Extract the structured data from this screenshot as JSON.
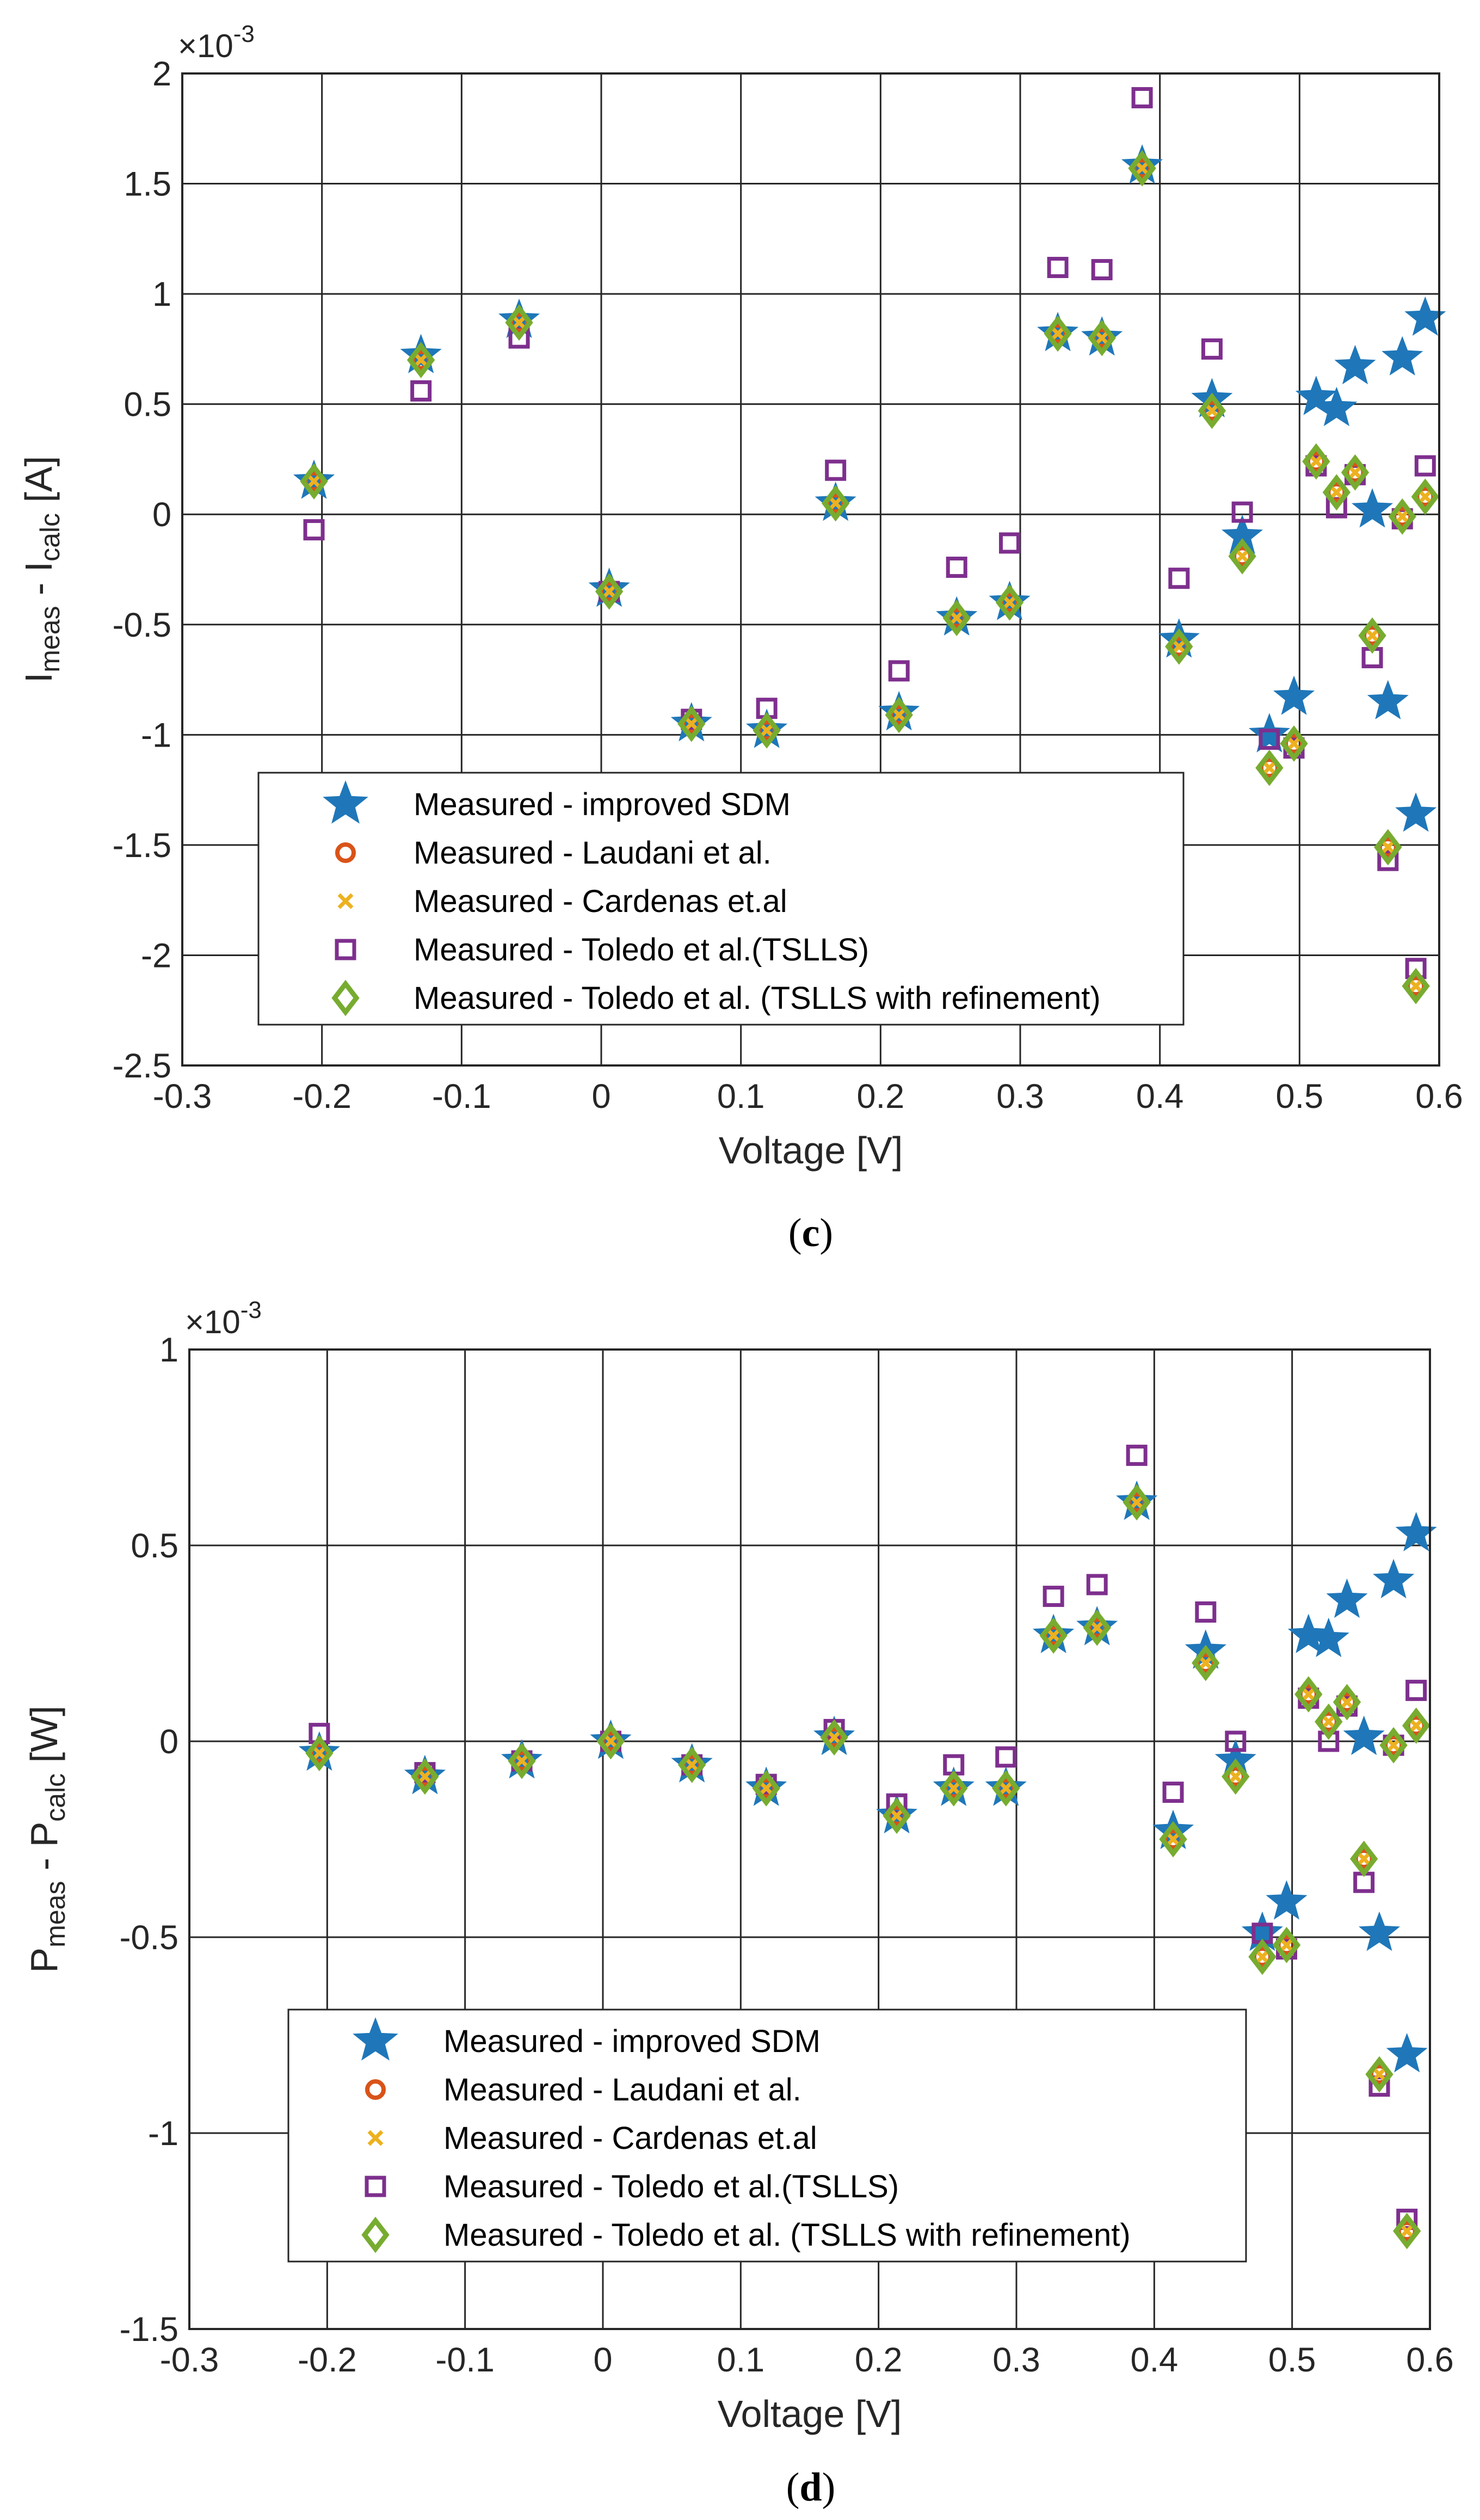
{
  "colors": {
    "improved_sdm": "#1f77b9",
    "laudani": "#d95319",
    "cardenas": "#edb120",
    "toledo_tslls": "#7e2f8e",
    "toledo_refined": "#77ac30"
  },
  "chart_data": [
    {
      "type": "scatter",
      "caption": "c",
      "xlabel": "Voltage [V]",
      "ylabel_main": "I",
      "ylabel_sub1": "meas",
      "ylabel_mid": " - I",
      "ylabel_sub2": "calc",
      "ylabel_unit": " [A]",
      "exponent_label": "×10",
      "exponent_power": "-3",
      "xlim": [
        -0.3,
        0.6
      ],
      "ylim": [
        -2.5,
        2
      ],
      "xticks": [
        -0.3,
        -0.2,
        -0.1,
        0,
        0.1,
        0.2,
        0.3,
        0.4,
        0.5,
        0.6
      ],
      "yticks": [
        -2.5,
        -2,
        -1.5,
        -1,
        -0.5,
        0,
        0.5,
        1,
        1.5,
        2
      ],
      "xtick_labels": [
        "-0.3",
        "-0.2",
        "-0.1",
        "0",
        "0.1",
        "0.2",
        "0.3",
        "0.4",
        "0.5",
        "0.6"
      ],
      "ytick_labels": [
        "-2.5",
        "-2",
        "-1.5",
        "-1",
        "-0.5",
        "0",
        "0.5",
        "1",
        "1.5",
        "2"
      ],
      "grid": true,
      "legend_position": "lower-center",
      "legend": [
        "Measured - improved SDM",
        "Measured - Laudani et al.",
        "Measured - Cardenas et.al",
        "Measured - Toledo et al.(TSLLS)",
        "Measured - Toledo et al. (TSLLS with refinement)"
      ],
      "x": [
        -0.2057,
        -0.1291,
        -0.0588,
        0.0057,
        0.0646,
        0.1185,
        0.1678,
        0.2132,
        0.2545,
        0.2924,
        0.3269,
        0.3585,
        0.3873,
        0.4137,
        0.4373,
        0.459,
        0.4784,
        0.496,
        0.5119,
        0.5265,
        0.5398,
        0.5521,
        0.5633,
        0.5736,
        0.5833,
        0.59
      ],
      "series": [
        {
          "name": "Measured - improved SDM",
          "marker": "star",
          "values": [
            0.15,
            0.72,
            0.88,
            -0.34,
            -0.95,
            -0.98,
            0.05,
            -0.9,
            -0.47,
            -0.4,
            0.82,
            0.8,
            1.58,
            -0.57,
            0.52,
            -0.1,
            -1.0,
            -0.83,
            0.53,
            0.48,
            0.67,
            0.02,
            -0.85,
            0.71,
            -1.36,
            0.89
          ]
        },
        {
          "name": "Measured - Laudani et al.",
          "marker": "circle",
          "values": [
            0.15,
            0.7,
            0.87,
            -0.35,
            -0.95,
            -0.98,
            0.05,
            -0.91,
            -0.47,
            -0.4,
            0.82,
            0.8,
            1.57,
            -0.6,
            0.47,
            -0.19,
            -1.15,
            -1.04,
            0.24,
            0.1,
            0.19,
            -0.55,
            -1.51,
            -0.01,
            -2.14,
            0.08
          ]
        },
        {
          "name": "Measured - Cardenas et.al",
          "marker": "x",
          "values": [
            0.15,
            0.7,
            0.87,
            -0.35,
            -0.95,
            -0.98,
            0.05,
            -0.91,
            -0.47,
            -0.4,
            0.82,
            0.8,
            1.57,
            -0.6,
            0.47,
            -0.19,
            -1.15,
            -1.04,
            0.24,
            0.1,
            0.19,
            -0.55,
            -1.51,
            -0.01,
            -2.14,
            0.08
          ]
        },
        {
          "name": "Measured - Toledo et al.(TSLLS)",
          "marker": "square",
          "values": [
            -0.07,
            0.56,
            0.8,
            -0.35,
            -0.93,
            -0.88,
            0.2,
            -0.71,
            -0.24,
            -0.13,
            1.12,
            1.11,
            1.89,
            -0.29,
            0.75,
            0.01,
            -1.02,
            -1.06,
            0.22,
            0.03,
            0.18,
            -0.65,
            -1.57,
            -0.02,
            -2.06,
            0.22
          ]
        },
        {
          "name": "Measured - Toledo et al. (TSLLS with refinement)",
          "marker": "diamond",
          "values": [
            0.15,
            0.7,
            0.87,
            -0.35,
            -0.95,
            -0.98,
            0.05,
            -0.91,
            -0.47,
            -0.4,
            0.82,
            0.8,
            1.57,
            -0.6,
            0.47,
            -0.19,
            -1.15,
            -1.04,
            0.24,
            0.1,
            0.19,
            -0.55,
            -1.51,
            -0.01,
            -2.14,
            0.08
          ]
        }
      ]
    },
    {
      "type": "scatter",
      "caption": "d",
      "xlabel": "Voltage [V]",
      "ylabel_main": "P",
      "ylabel_sub1": "meas",
      "ylabel_mid": " - P",
      "ylabel_sub2": "calc",
      "ylabel_unit": " [W]",
      "exponent_label": "×10",
      "exponent_power": "-3",
      "xlim": [
        -0.3,
        0.6
      ],
      "ylim": [
        -1.5,
        1
      ],
      "xticks": [
        -0.3,
        -0.2,
        -0.1,
        0,
        0.1,
        0.2,
        0.3,
        0.4,
        0.5,
        0.6
      ],
      "yticks": [
        -1.5,
        -1,
        -0.5,
        0,
        0.5,
        1
      ],
      "xtick_labels": [
        "-0.3",
        "-0.2",
        "-0.1",
        "0",
        "0.1",
        "0.2",
        "0.3",
        "0.4",
        "0.5",
        "0.6"
      ],
      "ytick_labels": [
        "-1.5",
        "-1",
        "-0.5",
        "0",
        "0.5",
        "1"
      ],
      "grid": true,
      "legend_position": "lower-center",
      "legend": [
        "Measured - improved SDM",
        "Measured - Laudani et al.",
        "Measured - Cardenas et.al",
        "Measured - Toledo et al.(TSLLS)",
        "Measured - Toledo et al. (TSLLS with refinement)"
      ],
      "x": [
        -0.2057,
        -0.1291,
        -0.0588,
        0.0057,
        0.0646,
        0.1185,
        0.1678,
        0.2132,
        0.2545,
        0.2924,
        0.3269,
        0.3585,
        0.3873,
        0.4137,
        0.4373,
        0.459,
        0.4784,
        0.496,
        0.5119,
        0.5265,
        0.5398,
        0.5521,
        0.5633,
        0.5736,
        0.5833,
        0.59
      ],
      "series": [
        {
          "name": "Measured - improved SDM",
          "marker": "star",
          "values": [
            -0.03,
            -0.09,
            -0.05,
            0.0,
            -0.06,
            -0.12,
            0.01,
            -0.19,
            -0.12,
            -0.12,
            0.27,
            0.29,
            0.61,
            -0.23,
            0.23,
            -0.05,
            -0.49,
            -0.41,
            0.27,
            0.26,
            0.36,
            0.01,
            -0.49,
            0.41,
            -0.8,
            0.53
          ]
        },
        {
          "name": "Measured - Laudani et al.",
          "marker": "circle",
          "values": [
            -0.03,
            -0.09,
            -0.05,
            0.0,
            -0.06,
            -0.12,
            0.01,
            -0.19,
            -0.12,
            -0.12,
            0.27,
            0.29,
            0.61,
            -0.25,
            0.2,
            -0.09,
            -0.55,
            -0.52,
            0.12,
            0.05,
            0.1,
            -0.3,
            -0.85,
            -0.01,
            -1.25,
            0.04
          ]
        },
        {
          "name": "Measured - Cardenas et.al",
          "marker": "x",
          "values": [
            -0.03,
            -0.09,
            -0.05,
            0.0,
            -0.06,
            -0.12,
            0.01,
            -0.19,
            -0.12,
            -0.12,
            0.27,
            0.29,
            0.61,
            -0.25,
            0.2,
            -0.09,
            -0.55,
            -0.52,
            0.12,
            0.05,
            0.1,
            -0.3,
            -0.85,
            -0.01,
            -1.25,
            0.04
          ]
        },
        {
          "name": "Measured - Toledo et al.(TSLLS)",
          "marker": "square",
          "values": [
            0.02,
            -0.08,
            -0.05,
            0.0,
            -0.06,
            -0.11,
            0.03,
            -0.16,
            -0.06,
            -0.04,
            0.37,
            0.4,
            0.73,
            -0.13,
            0.33,
            0.0,
            -0.49,
            -0.53,
            0.11,
            0.0,
            0.09,
            -0.36,
            -0.88,
            -0.01,
            -1.22,
            0.13
          ]
        },
        {
          "name": "Measured - Toledo et al. (TSLLS with refinement)",
          "marker": "diamond",
          "values": [
            -0.03,
            -0.09,
            -0.05,
            0.0,
            -0.06,
            -0.12,
            0.01,
            -0.19,
            -0.12,
            -0.12,
            0.27,
            0.29,
            0.61,
            -0.25,
            0.2,
            -0.09,
            -0.55,
            -0.52,
            0.12,
            0.05,
            0.1,
            -0.3,
            -0.85,
            -0.01,
            -1.25,
            0.04
          ]
        }
      ]
    }
  ]
}
